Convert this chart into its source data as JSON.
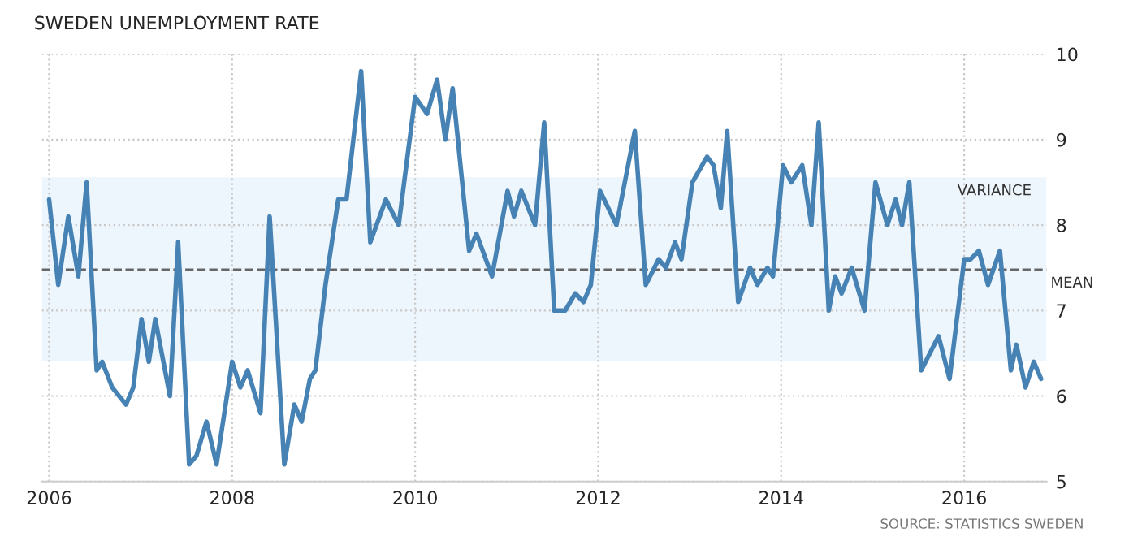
{
  "chart_data": {
    "type": "line",
    "title": "SWEDEN UNEMPLOYMENT RATE",
    "annotations": [
      "SOURCE: STATISTICS SWEDEN"
    ],
    "series": [
      {
        "color": "#4682b4",
        "x": [
          2006.0,
          2006.1,
          2006.21,
          2006.32,
          2006.41,
          2006.52,
          2006.58,
          2006.69,
          2006.84,
          2006.92,
          2007.01,
          2007.09,
          2007.16,
          2007.32,
          2007.41,
          2007.53,
          2007.61,
          2007.72,
          2007.83,
          2008.0,
          2008.09,
          2008.17,
          2008.31,
          2008.41,
          2008.57,
          2008.68,
          2008.76,
          2008.85,
          2008.91,
          2009.02,
          2009.16,
          2009.25,
          2009.41,
          2009.51,
          2009.68,
          2009.82,
          2010.0,
          2010.13,
          2010.24,
          2010.33,
          2010.41,
          2010.59,
          2010.67,
          2010.84,
          2011.01,
          2011.08,
          2011.16,
          2011.31,
          2011.41,
          2011.52,
          2011.64,
          2011.75,
          2011.84,
          2011.92,
          2012.02,
          2012.2,
          2012.4,
          2012.52,
          2012.66,
          2012.74,
          2012.84,
          2012.91,
          2013.03,
          2013.19,
          2013.26,
          2013.34,
          2013.41,
          2013.53,
          2013.66,
          2013.74,
          2013.85,
          2013.91,
          2014.02,
          2014.11,
          2014.23,
          2014.33,
          2014.41,
          2014.52,
          2014.59,
          2014.66,
          2014.77,
          2014.91,
          2015.03,
          2015.16,
          2015.25,
          2015.32,
          2015.4,
          2015.53,
          2015.72,
          2015.84,
          2016.0,
          2016.07,
          2016.16,
          2016.26,
          2016.39,
          2016.51,
          2016.57,
          2016.67,
          2016.76,
          2016.84
        ],
        "values": [
          8.3,
          7.3,
          8.1,
          7.4,
          8.5,
          6.3,
          6.4,
          6.1,
          5.9,
          6.1,
          6.9,
          6.4,
          6.9,
          6.0,
          7.8,
          5.2,
          5.3,
          5.7,
          5.2,
          6.4,
          6.1,
          6.3,
          5.8,
          8.1,
          5.2,
          5.9,
          5.7,
          6.2,
          6.3,
          7.3,
          8.3,
          8.3,
          9.8,
          7.8,
          8.3,
          8.0,
          9.5,
          9.3,
          9.7,
          9.0,
          9.6,
          7.7,
          7.9,
          7.4,
          8.4,
          8.1,
          8.4,
          8.0,
          9.2,
          7.0,
          7.0,
          7.2,
          7.1,
          7.3,
          8.4,
          8.0,
          9.1,
          7.3,
          7.6,
          7.5,
          7.8,
          7.6,
          8.5,
          8.8,
          8.7,
          8.2,
          9.1,
          7.1,
          7.5,
          7.3,
          7.5,
          7.4,
          8.7,
          8.5,
          8.7,
          8.0,
          9.2,
          7.0,
          7.4,
          7.2,
          7.5,
          7.0,
          8.5,
          8.0,
          8.3,
          8.0,
          8.5,
          6.3,
          6.7,
          6.2,
          7.6,
          7.6,
          7.7,
          7.3,
          7.7,
          6.3,
          6.6,
          6.1,
          6.4,
          6.2
        ]
      }
    ],
    "xlim": [
      2005.92,
      2016.9
    ],
    "xticks": [
      2006,
      2008,
      2010,
      2012,
      2014,
      2016
    ],
    "ylim": [
      5,
      10
    ],
    "yticks": [
      5,
      6,
      7,
      8,
      9,
      10
    ],
    "grid": true,
    "legend": false,
    "ref_lines": [
      {
        "axis": "y",
        "value": 7.48,
        "label": "MEAN",
        "color": "#666666",
        "line_style": "dashed"
      }
    ],
    "bands": [
      {
        "axis": "y",
        "from": 6.41,
        "to": 8.56,
        "label": "VARIANCE",
        "color": "#eef6fd"
      }
    ]
  }
}
